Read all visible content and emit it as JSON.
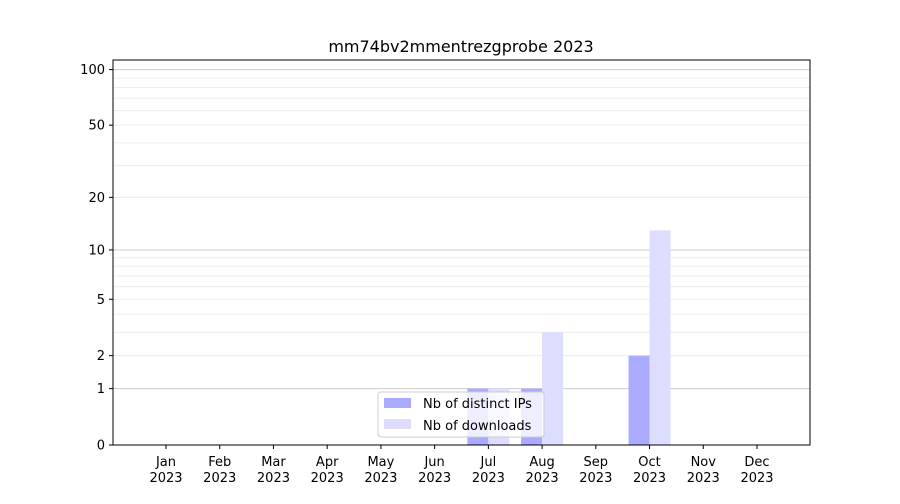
{
  "chart_data": {
    "type": "bar",
    "title": "mm74bv2mmentrezgprobe 2023",
    "xlabel": "",
    "ylabel": "",
    "yscale": "log(1+y)",
    "ylim": [
      0,
      110
    ],
    "yticks": [
      0,
      1,
      2,
      5,
      10,
      20,
      50,
      100
    ],
    "grid": true,
    "legend_position": "lower-center",
    "categories": [
      "Jan\n2023",
      "Feb\n2023",
      "Mar\n2023",
      "Apr\n2023",
      "May\n2023",
      "Jun\n2023",
      "Jul\n2023",
      "Aug\n2023",
      "Sep\n2023",
      "Oct\n2023",
      "Nov\n2023",
      "Dec\n2023"
    ],
    "series": [
      {
        "name": "Nb of distinct IPs",
        "color": "#aaaaff",
        "values": [
          0,
          0,
          0,
          0,
          0,
          0,
          1,
          1,
          0,
          2,
          0,
          0
        ]
      },
      {
        "name": "Nb of downloads",
        "color": "#ddddff",
        "values": [
          0,
          0,
          0,
          0,
          0,
          0,
          1,
          3,
          0,
          13,
          0,
          0
        ]
      }
    ]
  }
}
